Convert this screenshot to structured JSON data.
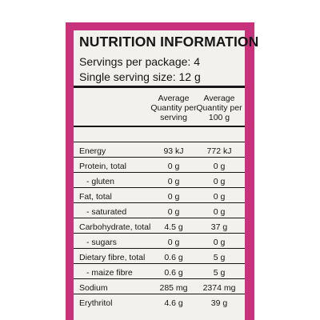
{
  "panel": {
    "title": "NUTRITION INFORMATION",
    "servings_per_package": "Servings per package: 4",
    "serving_size": "Single serving size: 12 g"
  },
  "columns": [
    "Average Quantity per serving",
    "Average Quantity per 100 g"
  ],
  "rows": [
    {
      "label": "Energy",
      "per_serving": "93 kJ",
      "per_100g": "772 kJ",
      "sub": false
    },
    {
      "label": "Protein, total",
      "per_serving": "0 g",
      "per_100g": "0 g",
      "sub": false
    },
    {
      "label": "- gluten",
      "per_serving": "0 g",
      "per_100g": "0 g",
      "sub": true
    },
    {
      "label": "Fat, total",
      "per_serving": "0 g",
      "per_100g": "0 g",
      "sub": false
    },
    {
      "label": "- saturated",
      "per_serving": "0 g",
      "per_100g": "0 g",
      "sub": true
    },
    {
      "label": "Carbohydrate, total",
      "per_serving": "4.5 g",
      "per_100g": "37 g",
      "sub": false
    },
    {
      "label": "- sugars",
      "per_serving": "0 g",
      "per_100g": "0 g",
      "sub": true
    },
    {
      "label": "Dietary fibre, total",
      "per_serving": "0.6 g",
      "per_100g": "5 g",
      "sub": false
    },
    {
      "label": "- maize fibre",
      "per_serving": "0.6 g",
      "per_100g": "5 g",
      "sub": true
    },
    {
      "label": "Sodium",
      "per_serving": "285 mg",
      "per_100g": "2374 mg",
      "sub": false
    },
    {
      "label": "Erythritol",
      "per_serving": "4.6 g",
      "per_100g": "39 g",
      "sub": false
    }
  ],
  "colors": {
    "frame": "#c8327d",
    "panel": "#f2f1ee",
    "ink": "#161616"
  }
}
